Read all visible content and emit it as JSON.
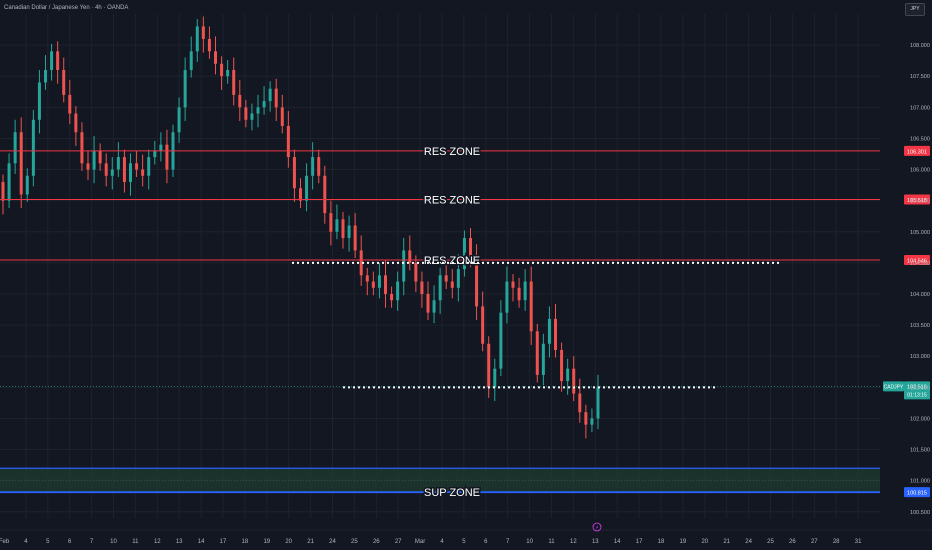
{
  "header": {
    "symbol_title": "Canadian Dollar / Japanese Yen · 4h · OANDA",
    "currency_button": "JPY"
  },
  "colors": {
    "background": "#131722",
    "grid": "#1e222d",
    "bull": "#26a69a",
    "bear": "#ef5350",
    "res_line": "#f23645",
    "sup_line": "#2962ff",
    "sup_zone": "#1e3a2f",
    "axis_text": "#b2b5be"
  },
  "chart_data": {
    "type": "candlestick",
    "symbol": "CADJPY",
    "ylim": [
      100.4,
      108.5
    ],
    "y_ticks": [
      100.5,
      101.0,
      101.5,
      102.0,
      102.5,
      103.0,
      103.5,
      104.0,
      104.5,
      105.0,
      105.5,
      106.0,
      106.5,
      107.0,
      107.5,
      108.0
    ],
    "y_tick_labels": [
      "100.500",
      "101.000",
      "101.500",
      "102.000",
      "102.500",
      "103.000",
      "103.500",
      "104.000",
      "104.500",
      "105.000",
      "105.500",
      "106.000",
      "106.500",
      "107.000",
      "107.500",
      "108.000"
    ],
    "x_labels": [
      "Feb",
      "4",
      "5",
      "6",
      "7",
      "10",
      "11",
      "12",
      "13",
      "14",
      "17",
      "18",
      "19",
      "20",
      "21",
      "24",
      "25",
      "26",
      "27",
      "Mar",
      "4",
      "5",
      "6",
      "7",
      "10",
      "11",
      "12",
      "13",
      "14",
      "17",
      "18",
      "19",
      "20",
      "21",
      "24",
      "25",
      "26",
      "27",
      "28",
      "31"
    ],
    "closes": [
      105.5,
      106.1,
      106.6,
      105.6,
      105.9,
      106.8,
      107.4,
      107.6,
      107.9,
      107.6,
      107.2,
      106.9,
      106.6,
      106.1,
      106.0,
      106.3,
      106.1,
      105.9,
      106.0,
      106.2,
      105.8,
      106.1,
      106.0,
      105.9,
      106.2,
      106.3,
      106.4,
      106.0,
      106.6,
      107.0,
      107.6,
      107.9,
      108.3,
      108.1,
      107.9,
      107.7,
      107.5,
      107.6,
      107.2,
      107.0,
      106.8,
      106.9,
      107.0,
      107.1,
      107.3,
      107.0,
      106.7,
      106.2,
      105.7,
      105.5,
      105.9,
      106.2,
      105.9,
      105.3,
      105.0,
      105.2,
      104.9,
      105.1,
      104.7,
      104.3,
      104.2,
      104.1,
      104.3,
      104.0,
      103.9,
      104.2,
      104.7,
      104.5,
      104.2,
      104.0,
      103.7,
      103.9,
      104.3,
      104.2,
      104.1,
      104.4,
      104.9,
      104.6,
      103.8,
      103.2,
      102.5,
      102.8,
      103.7,
      104.2,
      104.1,
      103.9,
      104.2,
      103.4,
      102.7,
      103.2,
      103.6,
      103.1,
      102.6,
      102.8,
      102.4,
      102.1,
      101.9,
      102.0,
      102.5
    ],
    "last_price": 102.516,
    "last_price_label": "CADJPY",
    "last_price_text": "102.516",
    "countdown_text": "01:13:15",
    "horizontal_lines": [
      {
        "label": "RES ZONE",
        "price": 106.301,
        "price_text": "106.301"
      },
      {
        "label": "RES ZONE",
        "price": 105.518,
        "price_text": "105.518"
      },
      {
        "label": "RES ZONE",
        "price": 104.546,
        "price_text": "104.546"
      }
    ],
    "dotted_lines": [
      {
        "price": 104.5
      },
      {
        "price": 102.5
      }
    ],
    "support_zone": {
      "label": "SUP ZONE",
      "top": 101.2,
      "bottom": 100.815,
      "price_text": "100.815"
    }
  }
}
